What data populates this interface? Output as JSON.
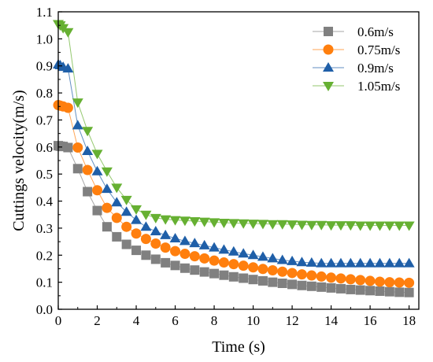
{
  "chart_data": {
    "type": "line",
    "xlabel": "Time (s)",
    "ylabel": "Cuttings velocity(m/s)",
    "xlim": [
      0,
      18.5
    ],
    "ylim": [
      0,
      1.1
    ],
    "xticks": [
      "0",
      "2",
      "4",
      "6",
      "8",
      "10",
      "12",
      "14",
      "16",
      "18"
    ],
    "yticks": [
      "0.0",
      "0.1",
      "0.2",
      "0.3",
      "0.4",
      "0.5",
      "0.6",
      "0.7",
      "0.8",
      "0.9",
      "1.0",
      "1.1"
    ],
    "grid": false,
    "legend_position": "top-right",
    "x": [
      0,
      0.1,
      0.25,
      0.5,
      1,
      1.5,
      2,
      2.5,
      3,
      3.5,
      4,
      4.5,
      5,
      5.5,
      6,
      6.5,
      7,
      7.5,
      8,
      8.5,
      9,
      9.5,
      10,
      10.5,
      11,
      11.5,
      12,
      12.5,
      13,
      13.5,
      14,
      14.5,
      15,
      15.5,
      16,
      16.5,
      17,
      17.5,
      18
    ],
    "series": [
      {
        "name": "0.6m/s",
        "marker": "square",
        "color": "#808080",
        "values": [
          0.605,
          0.603,
          0.602,
          0.598,
          0.52,
          0.435,
          0.365,
          0.305,
          0.268,
          0.24,
          0.218,
          0.2,
          0.185,
          0.172,
          0.162,
          0.152,
          0.145,
          0.138,
          0.132,
          0.126,
          0.12,
          0.115,
          0.11,
          0.105,
          0.1,
          0.096,
          0.092,
          0.088,
          0.085,
          0.082,
          0.079,
          0.076,
          0.073,
          0.071,
          0.069,
          0.067,
          0.065,
          0.063,
          0.062
        ]
      },
      {
        "name": "0.75m/s",
        "marker": "circle",
        "color": "#ff7f0e",
        "values": [
          0.755,
          0.753,
          0.75,
          0.745,
          0.598,
          0.515,
          0.44,
          0.375,
          0.338,
          0.305,
          0.28,
          0.26,
          0.243,
          0.228,
          0.215,
          0.205,
          0.196,
          0.188,
          0.18,
          0.173,
          0.167,
          0.161,
          0.155,
          0.149,
          0.144,
          0.139,
          0.134,
          0.129,
          0.125,
          0.121,
          0.117,
          0.114,
          0.111,
          0.108,
          0.105,
          0.102,
          0.1,
          0.099,
          0.098
        ]
      },
      {
        "name": "0.9m/s",
        "marker": "triangle-up",
        "color": "#1f5fa8",
        "values": [
          0.905,
          0.902,
          0.896,
          0.89,
          0.68,
          0.585,
          0.51,
          0.445,
          0.395,
          0.36,
          0.33,
          0.305,
          0.288,
          0.274,
          0.262,
          0.252,
          0.244,
          0.236,
          0.228,
          0.22,
          0.213,
          0.206,
          0.2,
          0.194,
          0.188,
          0.182,
          0.178,
          0.174,
          0.172,
          0.17,
          0.17,
          0.17,
          0.17,
          0.17,
          0.17,
          0.17,
          0.17,
          0.17,
          0.17
        ]
      },
      {
        "name": "1.05m/s",
        "marker": "triangle-down",
        "color": "#66b032",
        "values": [
          1.055,
          1.05,
          1.04,
          1.025,
          0.765,
          0.66,
          0.575,
          0.51,
          0.45,
          0.405,
          0.37,
          0.35,
          0.338,
          0.333,
          0.33,
          0.328,
          0.326,
          0.324,
          0.322,
          0.32,
          0.319,
          0.318,
          0.317,
          0.316,
          0.315,
          0.315,
          0.314,
          0.313,
          0.312,
          0.312,
          0.311,
          0.311,
          0.311,
          0.31,
          0.31,
          0.31,
          0.31,
          0.31,
          0.31
        ]
      }
    ]
  }
}
